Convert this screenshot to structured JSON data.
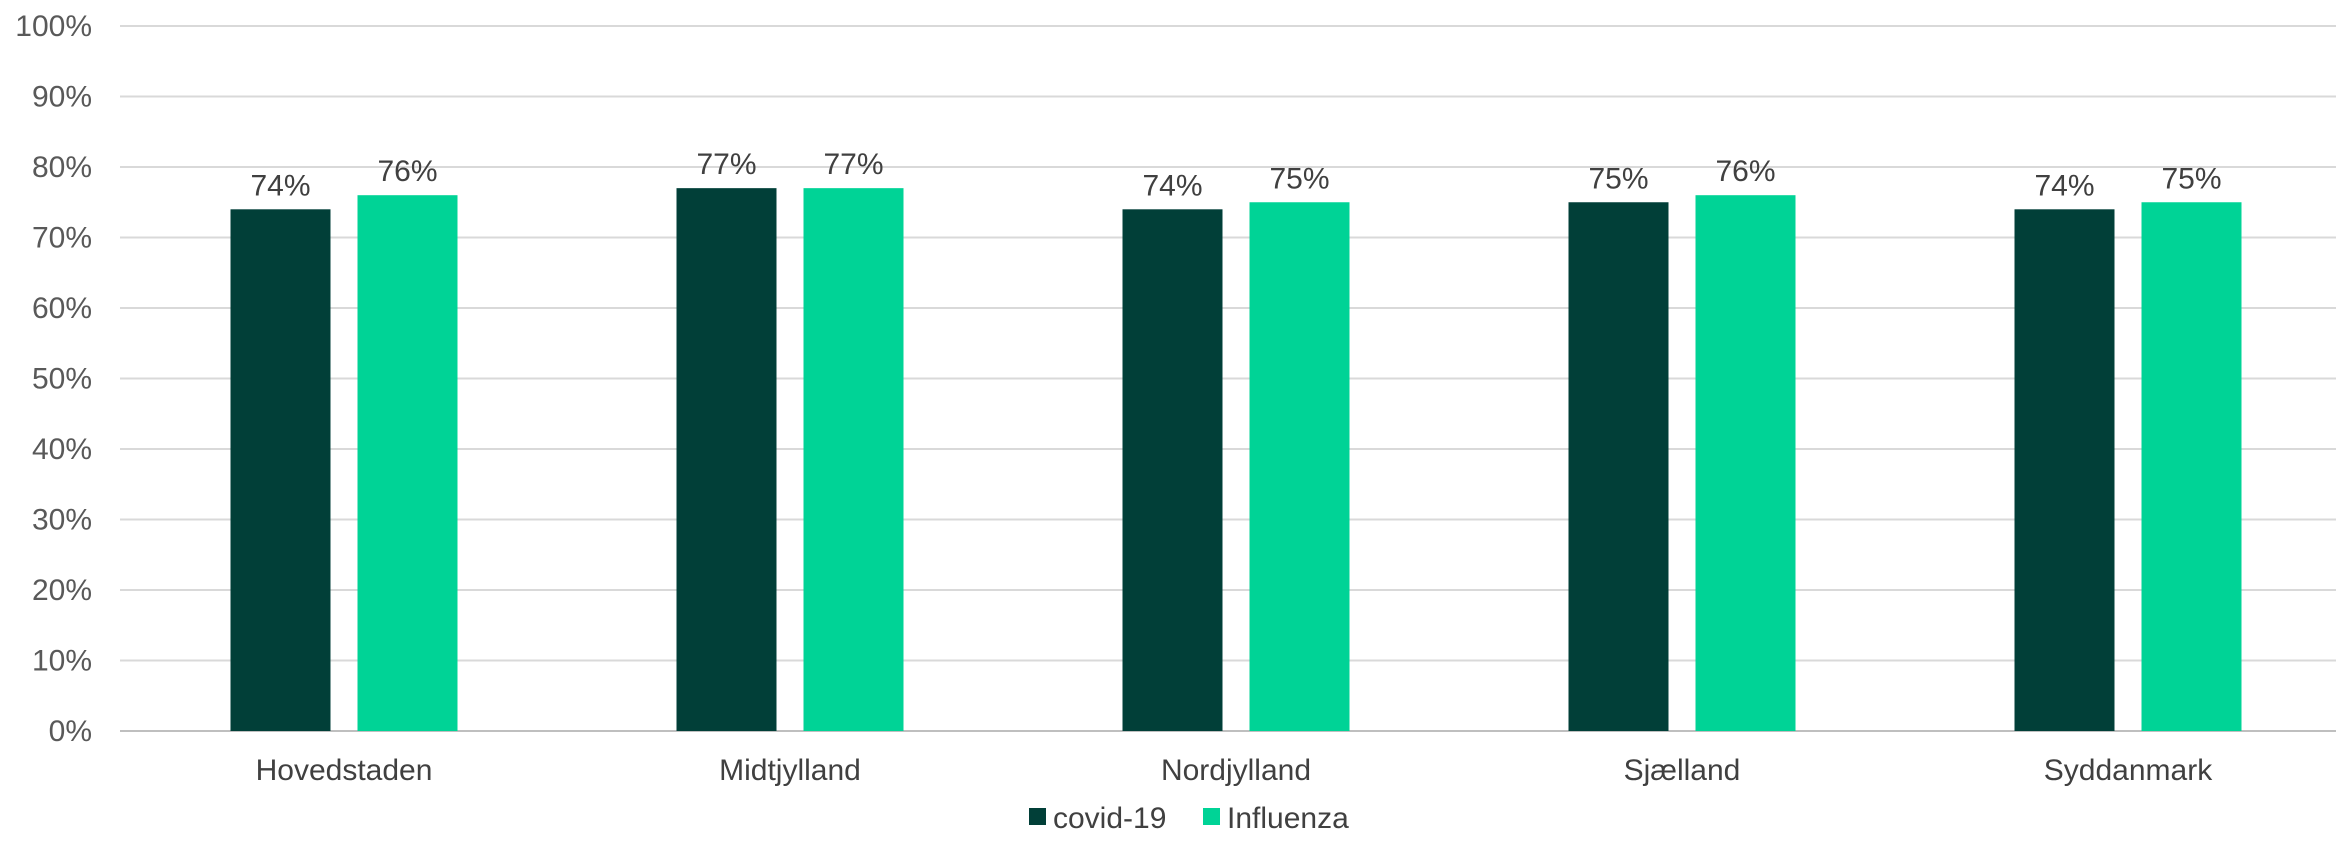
{
  "chart_data": {
    "type": "bar",
    "categories": [
      "Hovedstaden",
      "Midtjylland",
      "Nordjylland",
      "Sjælland",
      "Syddanmark"
    ],
    "series": [
      {
        "name": "covid-19",
        "color": "#013F38",
        "values": [
          74,
          77,
          74,
          75,
          74
        ],
        "labels": [
          "74%",
          "77%",
          "74%",
          "75%",
          "74%"
        ]
      },
      {
        "name": "Influenza",
        "color": "#00D396",
        "values": [
          76,
          77,
          75,
          76,
          75
        ],
        "labels": [
          "76%",
          "77%",
          "75%",
          "76%",
          "75%"
        ]
      }
    ],
    "yticks": [
      "0%",
      "10%",
      "20%",
      "30%",
      "40%",
      "50%",
      "60%",
      "70%",
      "80%",
      "90%",
      "100%"
    ],
    "ylim": [
      0,
      100
    ],
    "grid": true,
    "legend_position": "bottom-center",
    "title": "",
    "xlabel": "",
    "ylabel": ""
  }
}
